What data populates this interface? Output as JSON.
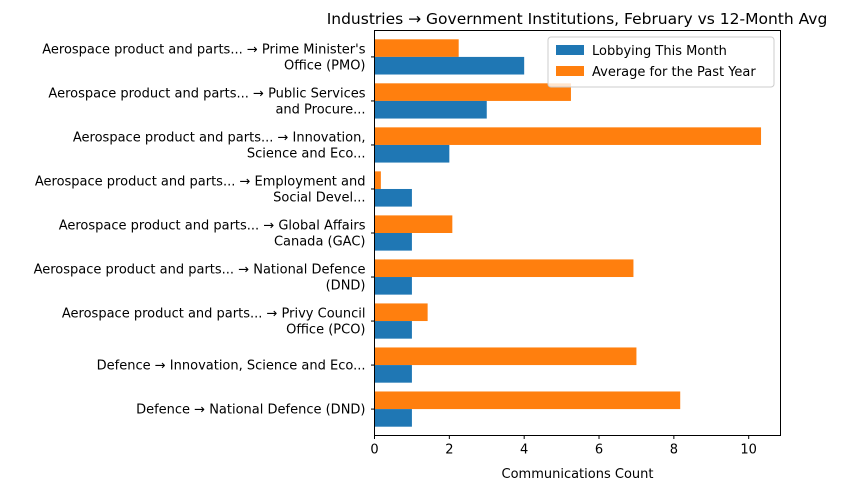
{
  "chart_data": {
    "type": "bar",
    "orientation": "horizontal",
    "title": "Industries → Government Institutions, February vs 12-Month Avg",
    "xlabel": "Communications Count",
    "ylabel": "",
    "xlim": [
      0,
      10.85
    ],
    "xticks": [
      0,
      2,
      4,
      6,
      8,
      10
    ],
    "legend_position": "top-right",
    "categories": [
      [
        "Aerospace product and parts... → Prime Minister's",
        "Office (PMO)"
      ],
      [
        "Aerospace product and parts... → Public Services",
        "and Procure..."
      ],
      [
        "Aerospace product and parts... → Innovation,",
        "Science and Eco..."
      ],
      [
        "Aerospace product and parts... → Employment and",
        "Social Devel..."
      ],
      [
        "Aerospace product and parts... → Global Affairs",
        "Canada (GAC)"
      ],
      [
        "Aerospace product and parts... → National Defence",
        "(DND)"
      ],
      [
        "Aerospace product and parts... → Privy Council",
        "Office (PCO)"
      ],
      [
        "Defence → Innovation, Science and Eco..."
      ],
      [
        "Defence → National Defence (DND)"
      ]
    ],
    "series": [
      {
        "name": "Lobbying This Month",
        "color": "#1f77b4",
        "values": [
          4,
          3,
          2,
          1,
          1,
          1,
          1,
          1,
          1
        ]
      },
      {
        "name": "Average for the Past Year",
        "color": "#ff7f0e",
        "values": [
          2.25,
          5.25,
          10.33,
          0.17,
          2.08,
          6.92,
          1.42,
          7.0,
          8.17
        ]
      }
    ]
  }
}
